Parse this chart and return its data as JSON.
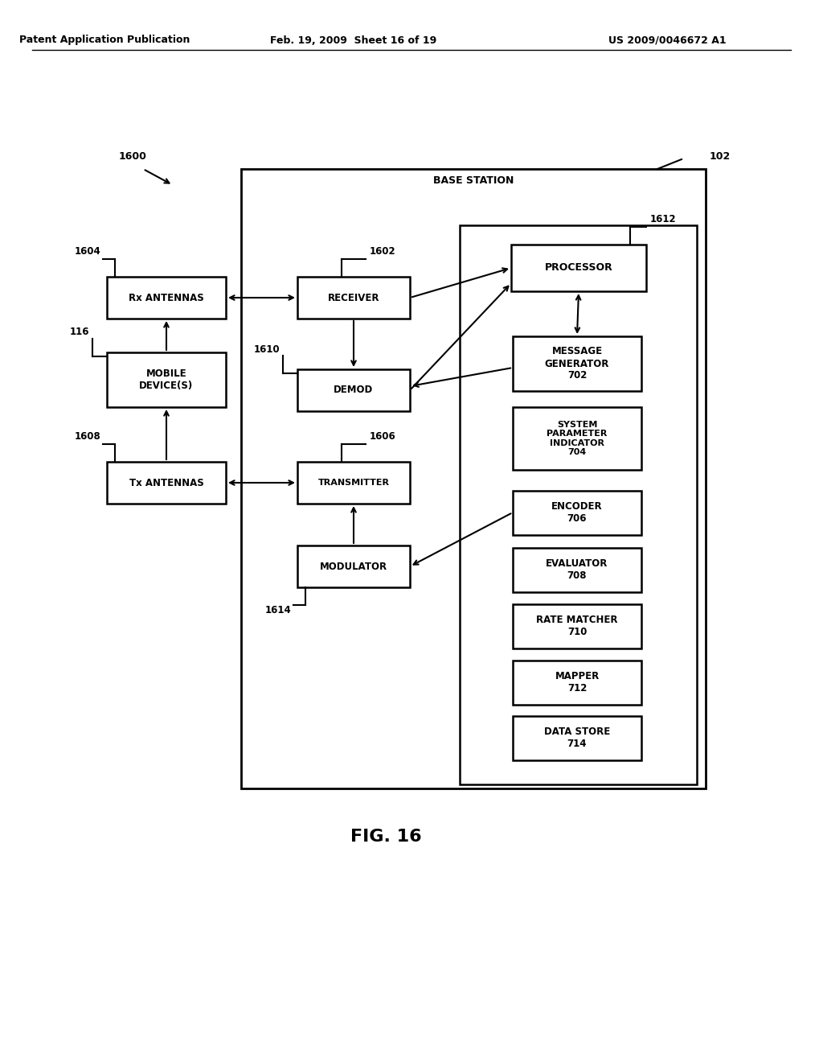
{
  "header_left": "Patent Application Publication",
  "header_mid": "Feb. 19, 2009  Sheet 16 of 19",
  "header_right": "US 2009/0046672 A1",
  "title": "FIG. 16",
  "bg": "#ffffff"
}
